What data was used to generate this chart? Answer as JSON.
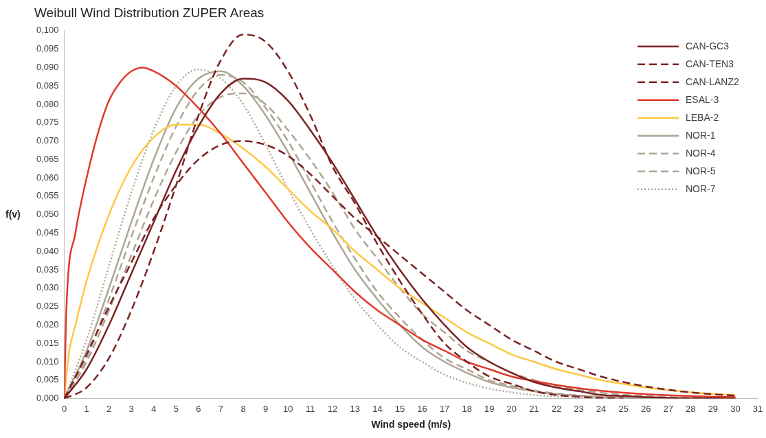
{
  "chart_data": {
    "type": "line",
    "title": "Weibull Wind Distribution ZUPER Areas",
    "xlabel": "Wind speed (m/s)",
    "ylabel": "f(v)",
    "x": [
      0,
      1,
      2,
      3,
      4,
      5,
      6,
      7,
      8,
      9,
      10,
      11,
      12,
      13,
      14,
      15,
      16,
      17,
      18,
      19,
      20,
      21,
      22,
      23,
      24,
      25,
      26,
      27,
      28,
      29,
      30
    ],
    "xlim": [
      0,
      31
    ],
    "xticks": [
      0,
      1,
      2,
      3,
      4,
      5,
      6,
      7,
      8,
      9,
      10,
      11,
      12,
      13,
      14,
      15,
      16,
      17,
      18,
      19,
      20,
      21,
      22,
      23,
      24,
      25,
      26,
      27,
      28,
      29,
      30,
      31
    ],
    "ylim": [
      0,
      0.1
    ],
    "yticks": [
      {
        "value": 0,
        "label": "0,000"
      },
      {
        "value": 0.005,
        "label": "0,005"
      },
      {
        "value": 0.01,
        "label": "0,010"
      },
      {
        "value": 0.015,
        "label": "0,015"
      },
      {
        "value": 0.02,
        "label": "0,020"
      },
      {
        "value": 0.025,
        "label": "0,025"
      },
      {
        "value": 0.03,
        "label": "0,030"
      },
      {
        "value": 0.035,
        "label": "0,035"
      },
      {
        "value": 0.04,
        "label": "0,040"
      },
      {
        "value": 0.045,
        "label": "0,045"
      },
      {
        "value": 0.05,
        "label": "0,050"
      },
      {
        "value": 0.055,
        "label": "0,055"
      },
      {
        "value": 0.06,
        "label": "0,060"
      },
      {
        "value": 0.065,
        "label": "0,065"
      },
      {
        "value": 0.07,
        "label": "0,070"
      },
      {
        "value": 0.075,
        "label": "0,075"
      },
      {
        "value": 0.08,
        "label": "0,080"
      },
      {
        "value": 0.085,
        "label": "0,085"
      },
      {
        "value": 0.09,
        "label": "0,090"
      },
      {
        "value": 0.095,
        "label": "0,095"
      },
      {
        "value": 0.1,
        "label": "0,100"
      }
    ],
    "grid": false,
    "legend": "top right",
    "marker": "none",
    "series": [
      {
        "name": "CAN-GC3",
        "color": "#7b2222",
        "line_style": "solid",
        "values": [
          0,
          0.008,
          0.02,
          0.034,
          0.048,
          0.062,
          0.074,
          0.083,
          0.087,
          0.086,
          0.081,
          0.073,
          0.064,
          0.054,
          0.044,
          0.035,
          0.027,
          0.02,
          0.014,
          0.01,
          0.007,
          0.0045,
          0.003,
          0.002,
          0.001,
          0.0007,
          0.0004,
          0.0002,
          0.0001,
          0.0001,
          0
        ]
      },
      {
        "name": "CAN-TEN3",
        "color": "#7b2222",
        "line_style": "dashed",
        "values": [
          0,
          0.012,
          0.025,
          0.037,
          0.049,
          0.058,
          0.065,
          0.069,
          0.07,
          0.069,
          0.066,
          0.061,
          0.055,
          0.049,
          0.044,
          0.039,
          0.034,
          0.029,
          0.024,
          0.02,
          0.016,
          0.013,
          0.01,
          0.008,
          0.006,
          0.0045,
          0.0033,
          0.0024,
          0.0017,
          0.0012,
          0.0008
        ]
      },
      {
        "name": "CAN-LANZ2",
        "color": "#7b2222",
        "line_style": "dashed",
        "x": [
          0,
          1,
          2,
          3,
          4,
          5,
          6,
          7,
          8,
          9,
          10,
          11,
          12,
          13,
          14,
          15,
          16,
          17,
          18,
          19,
          20,
          21,
          22,
          23,
          24,
          25
        ],
        "values": [
          0,
          0.003,
          0.011,
          0.024,
          0.04,
          0.058,
          0.077,
          0.092,
          0.099,
          0.097,
          0.089,
          0.077,
          0.063,
          0.053,
          0.042,
          0.032,
          0.023,
          0.015,
          0.01,
          0.006,
          0.004,
          0.002,
          0.001,
          0.0005,
          0.0002,
          0
        ]
      },
      {
        "name": "ESAL-3",
        "color": "#e0392b",
        "line_style": "solid",
        "x": [
          0,
          0.1,
          0.5,
          1,
          1.5,
          2,
          2.5,
          3,
          3.5,
          4,
          5,
          6,
          7,
          8,
          9,
          10,
          11,
          12,
          13,
          14,
          15,
          16,
          17,
          18,
          19,
          20,
          21,
          22,
          23,
          24,
          25,
          26,
          27,
          28,
          29,
          30
        ],
        "values": [
          0,
          0.025,
          0.045,
          0.06,
          0.072,
          0.081,
          0.086,
          0.089,
          0.09,
          0.089,
          0.085,
          0.079,
          0.072,
          0.064,
          0.056,
          0.048,
          0.041,
          0.035,
          0.029,
          0.024,
          0.02,
          0.016,
          0.013,
          0.01,
          0.008,
          0.006,
          0.0048,
          0.0037,
          0.0028,
          0.0021,
          0.0016,
          0.0012,
          0.0009,
          0.0007,
          0.0005,
          0.0004
        ]
      },
      {
        "name": "LEBA-2",
        "color": "#ffc843",
        "line_style": "solid",
        "x": [
          0,
          0.2,
          0.5,
          1,
          2,
          3,
          4,
          5,
          6,
          7,
          8,
          9,
          10,
          11,
          12,
          13,
          14,
          15,
          16,
          17,
          18,
          19,
          20,
          21,
          22,
          23,
          24,
          25,
          26,
          27,
          28,
          29,
          30
        ],
        "values": [
          0,
          0.012,
          0.02,
          0.032,
          0.05,
          0.063,
          0.071,
          0.0745,
          0.0745,
          0.072,
          0.068,
          0.063,
          0.057,
          0.051,
          0.046,
          0.04,
          0.035,
          0.03,
          0.026,
          0.022,
          0.018,
          0.015,
          0.012,
          0.01,
          0.008,
          0.0065,
          0.005,
          0.004,
          0.003,
          0.0023,
          0.0017,
          0.0013,
          0.001
        ]
      },
      {
        "name": "NOR-1",
        "color": "#aea594",
        "line_style": "solid",
        "x": [
          0,
          1,
          2,
          3,
          4,
          5,
          6,
          7,
          8,
          9,
          10,
          11,
          12,
          13,
          14,
          15,
          16,
          17,
          18,
          19,
          20,
          21,
          22,
          23,
          24,
          25,
          26,
          27,
          28,
          29
        ],
        "values": [
          0,
          0.013,
          0.03,
          0.048,
          0.065,
          0.079,
          0.087,
          0.089,
          0.085,
          0.077,
          0.067,
          0.056,
          0.045,
          0.035,
          0.027,
          0.02,
          0.014,
          0.01,
          0.007,
          0.0045,
          0.003,
          0.002,
          0.0012,
          0.0008,
          0.0005,
          0.0003,
          0.0001,
          0.0001,
          0,
          0
        ]
      },
      {
        "name": "NOR-4",
        "color": "#aea594",
        "line_style": "dashed",
        "values": [
          0,
          0.01,
          0.024,
          0.039,
          0.054,
          0.067,
          0.077,
          0.082,
          0.083,
          0.08,
          0.073,
          0.065,
          0.056,
          0.046,
          0.038,
          0.03,
          0.023,
          0.018,
          0.013,
          0.01,
          0.007,
          0.005,
          0.0035,
          0.0024,
          0.0016,
          0.001,
          0.0007,
          0.0004,
          0.0003,
          0.0002,
          0.0001
        ]
      },
      {
        "name": "NOR-5",
        "color": "#aea594",
        "line_style": "dashed",
        "x": [
          0,
          1,
          2,
          3,
          4,
          5,
          6,
          7,
          8,
          9,
          10,
          11,
          12,
          13,
          14,
          15,
          16,
          17,
          18,
          19,
          20,
          21,
          22,
          23,
          24,
          25,
          26,
          27,
          28
        ],
        "values": [
          0,
          0.011,
          0.027,
          0.044,
          0.06,
          0.074,
          0.084,
          0.088,
          0.086,
          0.079,
          0.07,
          0.059,
          0.048,
          0.038,
          0.029,
          0.022,
          0.016,
          0.011,
          0.008,
          0.005,
          0.0035,
          0.0022,
          0.0014,
          0.0009,
          0.0005,
          0.0003,
          0.0002,
          0.0001,
          0
        ]
      },
      {
        "name": "NOR-7",
        "color": "#aea594",
        "line_style": "dotted",
        "x": [
          0,
          1,
          2,
          3,
          4,
          5,
          6,
          7,
          8,
          9,
          10,
          11,
          12,
          13,
          14,
          15,
          16,
          17,
          18,
          19,
          20,
          21,
          22,
          23,
          24,
          25,
          26
        ],
        "values": [
          0,
          0.016,
          0.036,
          0.056,
          0.073,
          0.085,
          0.0895,
          0.087,
          0.08,
          0.069,
          0.057,
          0.046,
          0.036,
          0.027,
          0.02,
          0.014,
          0.01,
          0.0065,
          0.0043,
          0.0027,
          0.0017,
          0.001,
          0.0006,
          0.0004,
          0.0002,
          0.0001,
          0
        ]
      }
    ]
  }
}
